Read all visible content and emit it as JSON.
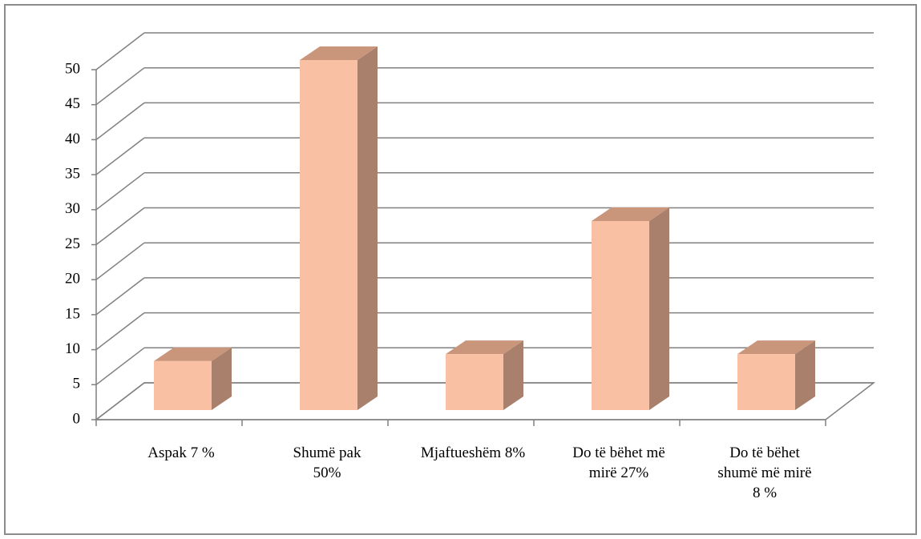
{
  "chart_data": {
    "type": "bar3d",
    "categories": [
      "Aspak 7 %",
      "Shumë pak 50%",
      "Mjaftueshëm 8%",
      "Do të bëhet më mirë 27%",
      "Do të bëhet shumë më mirë 8 %"
    ],
    "values": [
      7,
      50,
      8,
      27,
      8
    ],
    "color": "#f9c0a4",
    "ylim": [
      0,
      50
    ],
    "yticks": [
      0,
      5,
      10,
      15,
      20,
      25,
      30,
      35,
      40,
      45,
      50
    ],
    "grid": true
  }
}
